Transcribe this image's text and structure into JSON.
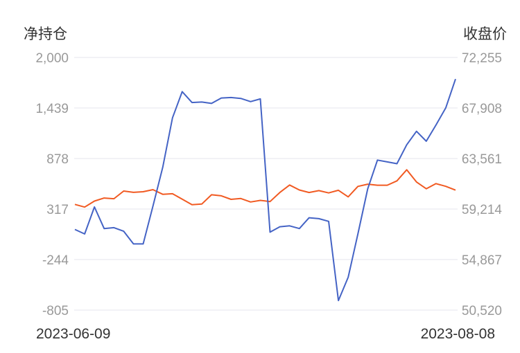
{
  "chart_data": {
    "type": "line",
    "left_axis_title": "净持仓",
    "right_axis_title": "收盘价",
    "left_ticks": [
      "2,000",
      "1,439",
      "878",
      "317",
      "-244",
      "-805"
    ],
    "right_ticks": [
      "72,255",
      "67,908",
      "63,561",
      "59,214",
      "54,867",
      "50,520"
    ],
    "ylim_left": [
      -805,
      2000
    ],
    "ylim_right": [
      50520,
      72255
    ],
    "x_labels": [
      "2023-06-09",
      "2023-08-08"
    ],
    "grid": true,
    "colors": {
      "net_position": "#4463c5",
      "close_price": "#f15a22"
    },
    "series": [
      {
        "axis": "left",
        "values": [
          90,
          40,
          340,
          100,
          110,
          70,
          -70,
          -70,
          350,
          780,
          1330,
          1620,
          1500,
          1505,
          1490,
          1550,
          1555,
          1545,
          1510,
          1540,
          60,
          120,
          130,
          100,
          220,
          210,
          180,
          -700,
          -440,
          40,
          540,
          860,
          840,
          820,
          1030,
          1180,
          1070,
          1250,
          1440,
          1760
        ]
      },
      {
        "axis": "right",
        "values": [
          59610,
          59380,
          59900,
          60160,
          60100,
          60760,
          60650,
          60700,
          60880,
          60480,
          60530,
          60060,
          59590,
          59640,
          60440,
          60350,
          60050,
          60120,
          59820,
          59960,
          59860,
          60640,
          61280,
          60850,
          60640,
          60800,
          60600,
          60830,
          60260,
          61160,
          61350,
          61260,
          61260,
          61640,
          62590,
          61540,
          60960,
          61400,
          61170,
          60840
        ]
      }
    ]
  }
}
